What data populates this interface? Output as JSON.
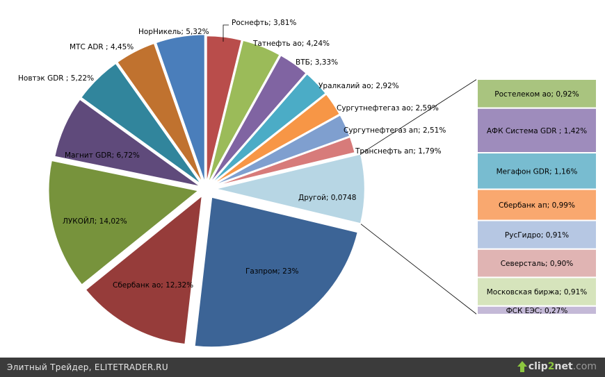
{
  "chart_data": {
    "type": "pie",
    "title": "",
    "slices": [
      {
        "label": "Роснефть; 3,81%",
        "value": 3.81,
        "color": "#b94d4b"
      },
      {
        "label": "Татнефть ао; 4,24%",
        "value": 4.24,
        "color": "#9bbb59"
      },
      {
        "label": "ВТБ; 3,33%",
        "value": 3.33,
        "color": "#8064a2"
      },
      {
        "label": "Уралкалий ао; 2,92%",
        "value": 2.92,
        "color": "#4bacc6"
      },
      {
        "label": "Сургутнефтегаз ао; 2,59%",
        "value": 2.59,
        "color": "#f79646"
      },
      {
        "label": "Сургутнефтегаз ап; 2,51%",
        "value": 2.51,
        "color": "#7f9fcf"
      },
      {
        "label": "Транснефть ап; 1,79%",
        "value": 1.79,
        "color": "#d77b7a"
      },
      {
        "label": "Другой; 0,0748",
        "value": 7.48,
        "color": "#b7d6e4"
      },
      {
        "label": "Газпром; 23%",
        "value": 23.0,
        "color": "#3c6496"
      },
      {
        "label": "Сбербанк ао; 12,32%",
        "value": 12.32,
        "color": "#963c3a"
      },
      {
        "label": "ЛУКОЙЛ; 14,02%",
        "value": 14.02,
        "color": "#77933c"
      },
      {
        "label": "Магнит GDR; 6,72%",
        "value": 6.72,
        "color": "#5f4a7b"
      },
      {
        "label": "Новтэк GDR ; 5,22%",
        "value": 5.22,
        "color": "#31859c"
      },
      {
        "label": "МТС ADR ; 4,45%",
        "value": 4.45,
        "color": "#c0722f"
      },
      {
        "label": "НорНикель; 5,32%",
        "value": 5.32,
        "color": "#4a7ebb"
      }
    ],
    "other_breakdown": {
      "title_slice": "Другой; 0,0748",
      "segments": [
        {
          "label": "Ростелеком ао; 0,92%",
          "value": 0.92,
          "color": "#a9c47f"
        },
        {
          "label": "АФК Система GDR ; 1,42%",
          "value": 1.42,
          "color": "#9e8cbc"
        },
        {
          "label": "Мегафон GDR; 1,16%",
          "value": 1.16,
          "color": "#78bcd0"
        },
        {
          "label": "Сбербанк ап; 0,99%",
          "value": 0.99,
          "color": "#f9a86f"
        },
        {
          "label": "РусГидро; 0,91%",
          "value": 0.91,
          "color": "#b6c7e3"
        },
        {
          "label": "Северсталь; 0,90%",
          "value": 0.9,
          "color": "#e0b4b3"
        },
        {
          "label": "Московская биржа; 0,91%",
          "value": 0.91,
          "color": "#d6e4bc"
        },
        {
          "label": "ФСК ЕЭС; 0,27%",
          "value": 0.27,
          "color": "#c4b9d7"
        }
      ]
    }
  },
  "footer": {
    "caption": "Элитный Трейдер, ELITETRADER.RU",
    "brand_clip": "clip",
    "brand_2": "2",
    "brand_net": "net",
    "brand_com": ".com"
  },
  "colors": {
    "footer_bg": "#3b3b3b",
    "brand_green": "#8cc63f"
  }
}
